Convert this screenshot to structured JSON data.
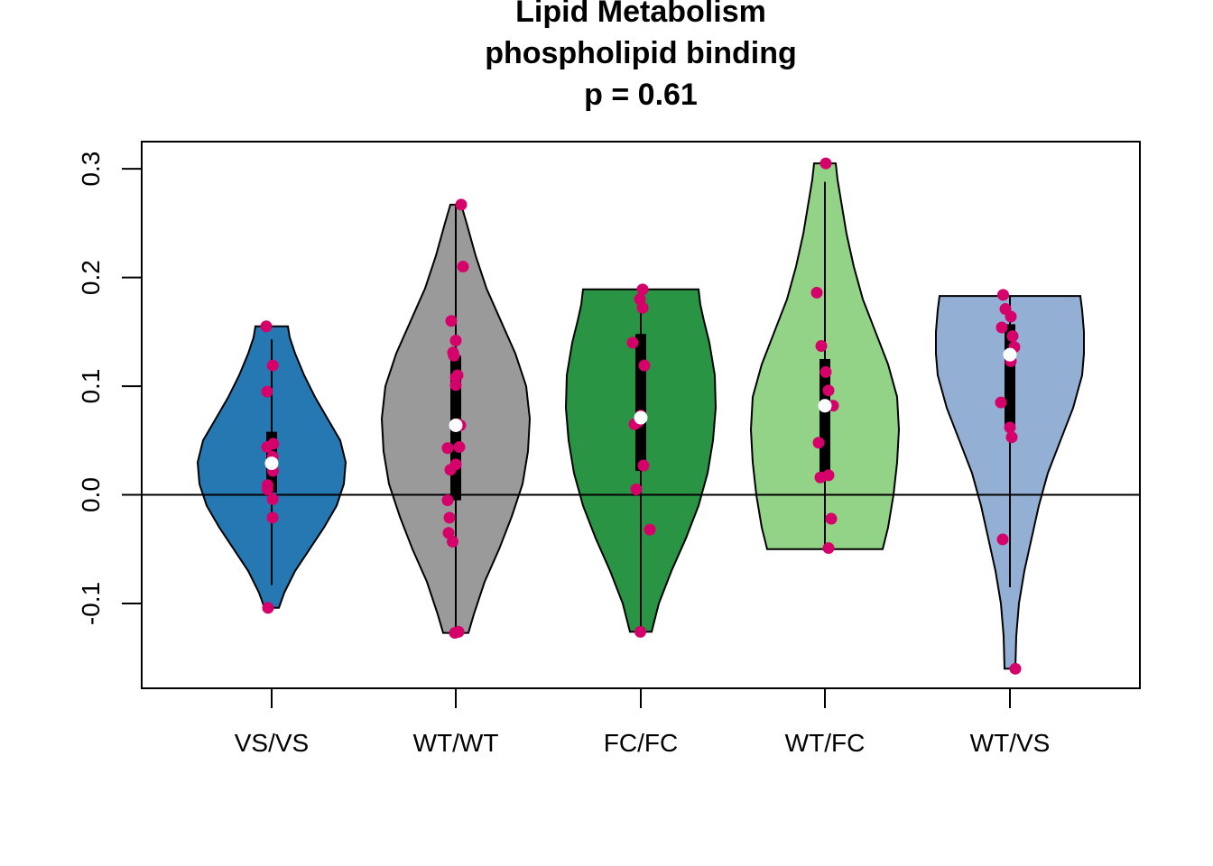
{
  "chart_data": {
    "type": "violin",
    "title_lines": [
      "Lipid Metabolism",
      "phospholipid binding",
      "p = 0.61"
    ],
    "xlabel": "",
    "ylabel": "",
    "ylim": [
      -0.178,
      0.325
    ],
    "yticks": [
      -0.1,
      0.0,
      0.1,
      0.2,
      0.3
    ],
    "ytick_labels": [
      "-0.1",
      "0.0",
      "0.1",
      "0.2",
      "0.3"
    ],
    "reference_line": 0.0,
    "grid": false,
    "point_color": "#D6006B",
    "median_color": "#FFFFFF",
    "groups": [
      {
        "label": "VS/VS",
        "color": "#2678B2",
        "range": [
          -0.104,
          0.155
        ],
        "whisker": [
          -0.083,
          0.143
        ],
        "q1": 0.002,
        "q3": 0.058,
        "median": 0.029,
        "density": [
          [
            -0.104,
            8
          ],
          [
            -0.09,
            14
          ],
          [
            -0.07,
            26
          ],
          [
            -0.05,
            42
          ],
          [
            -0.03,
            58
          ],
          [
            -0.01,
            72
          ],
          [
            0.01,
            80
          ],
          [
            0.03,
            82
          ],
          [
            0.05,
            76
          ],
          [
            0.07,
            62
          ],
          [
            0.09,
            48
          ],
          [
            0.11,
            36
          ],
          [
            0.13,
            26
          ],
          [
            0.145,
            20
          ],
          [
            0.155,
            18
          ]
        ],
        "points": [
          [
            -0.06,
            0.155
          ],
          [
            0.012,
            0.119
          ],
          [
            -0.05,
            0.095
          ],
          [
            -0.05,
            0.044
          ],
          [
            0.018,
            0.047
          ],
          [
            0.012,
            0.035
          ],
          [
            0.015,
            0.022
          ],
          [
            -0.045,
            0.009
          ],
          [
            -0.045,
            0.005
          ],
          [
            0.012,
            -0.004
          ],
          [
            0.01,
            -0.021
          ],
          [
            -0.04,
            -0.104
          ]
        ]
      },
      {
        "label": "WT/WT",
        "color": "#9A9A9A",
        "range": [
          -0.127,
          0.267
        ],
        "whisker": [
          -0.127,
          0.267
        ],
        "q1": -0.005,
        "q3": 0.128,
        "median": 0.064,
        "density": [
          [
            -0.127,
            14
          ],
          [
            -0.11,
            20
          ],
          [
            -0.08,
            32
          ],
          [
            -0.05,
            48
          ],
          [
            -0.02,
            62
          ],
          [
            0.01,
            74
          ],
          [
            0.04,
            80
          ],
          [
            0.07,
            82
          ],
          [
            0.1,
            78
          ],
          [
            0.13,
            66
          ],
          [
            0.16,
            50
          ],
          [
            0.19,
            34
          ],
          [
            0.22,
            22
          ],
          [
            0.25,
            12
          ],
          [
            0.267,
            6
          ]
        ],
        "points": [
          [
            0.06,
            0.267
          ],
          [
            0.08,
            0.21
          ],
          [
            -0.05,
            0.16
          ],
          [
            0.0,
            0.142
          ],
          [
            -0.03,
            0.131
          ],
          [
            -0.02,
            0.128
          ],
          [
            0.02,
            0.11
          ],
          [
            0.0,
            0.108
          ],
          [
            0.0,
            0.101
          ],
          [
            0.02,
            0.065
          ],
          [
            0.05,
            0.064
          ],
          [
            0.04,
            0.044
          ],
          [
            -0.09,
            0.043
          ],
          [
            0.0,
            0.028
          ],
          [
            -0.06,
            0.023
          ],
          [
            -0.09,
            -0.005
          ],
          [
            -0.07,
            -0.021
          ],
          [
            -0.08,
            -0.035
          ],
          [
            -0.035,
            -0.043
          ],
          [
            0.03,
            -0.126
          ],
          [
            -0.01,
            -0.127
          ]
        ]
      },
      {
        "label": "FC/FC",
        "color": "#2A9445",
        "range": [
          -0.126,
          0.189
        ],
        "whisker": [
          -0.126,
          0.189
        ],
        "q1": 0.022,
        "q3": 0.148,
        "median": 0.071,
        "density": [
          [
            -0.126,
            12
          ],
          [
            -0.1,
            20
          ],
          [
            -0.07,
            34
          ],
          [
            -0.04,
            50
          ],
          [
            -0.01,
            64
          ],
          [
            0.02,
            74
          ],
          [
            0.05,
            80
          ],
          [
            0.08,
            83
          ],
          [
            0.11,
            82
          ],
          [
            0.14,
            76
          ],
          [
            0.16,
            70
          ],
          [
            0.175,
            66
          ],
          [
            0.189,
            64
          ]
        ],
        "points": [
          [
            0.02,
            0.189
          ],
          [
            -0.01,
            0.18
          ],
          [
            0.02,
            0.172
          ],
          [
            -0.09,
            0.14
          ],
          [
            0.04,
            0.119
          ],
          [
            0.0,
            0.073
          ],
          [
            -0.03,
            0.067
          ],
          [
            -0.07,
            0.065
          ],
          [
            0.03,
            0.027
          ],
          [
            -0.05,
            0.005
          ],
          [
            0.1,
            -0.032
          ],
          [
            -0.005,
            -0.126
          ]
        ]
      },
      {
        "label": "WT/FC",
        "color": "#93D387",
        "range": [
          -0.05,
          0.305
        ],
        "whisker": [
          -0.05,
          0.288
        ],
        "q1": 0.02,
        "q3": 0.125,
        "median": 0.082,
        "density": [
          [
            -0.05,
            64
          ],
          [
            -0.03,
            70
          ],
          [
            0.0,
            76
          ],
          [
            0.03,
            80
          ],
          [
            0.06,
            82
          ],
          [
            0.09,
            80
          ],
          [
            0.12,
            70
          ],
          [
            0.15,
            56
          ],
          [
            0.18,
            42
          ],
          [
            0.21,
            32
          ],
          [
            0.24,
            24
          ],
          [
            0.27,
            18
          ],
          [
            0.29,
            14
          ],
          [
            0.305,
            12
          ]
        ],
        "points": [
          [
            0.01,
            0.305
          ],
          [
            -0.09,
            0.186
          ],
          [
            -0.04,
            0.137
          ],
          [
            0.01,
            0.113
          ],
          [
            0.04,
            0.096
          ],
          [
            0.09,
            0.082
          ],
          [
            -0.07,
            0.048
          ],
          [
            0.04,
            0.018
          ],
          [
            -0.05,
            0.016
          ],
          [
            0.07,
            -0.022
          ],
          [
            0.04,
            -0.049
          ]
        ]
      },
      {
        "label": "WT/VS",
        "color": "#94AFD4",
        "range": [
          -0.16,
          0.183
        ],
        "whisker": [
          -0.085,
          0.183
        ],
        "q1": 0.06,
        "q3": 0.157,
        "median": 0.129,
        "density": [
          [
            -0.16,
            6
          ],
          [
            -0.13,
            7
          ],
          [
            -0.1,
            10
          ],
          [
            -0.07,
            16
          ],
          [
            -0.04,
            24
          ],
          [
            -0.01,
            32
          ],
          [
            0.02,
            42
          ],
          [
            0.05,
            56
          ],
          [
            0.08,
            70
          ],
          [
            0.11,
            80
          ],
          [
            0.13,
            82
          ],
          [
            0.15,
            82
          ],
          [
            0.17,
            80
          ],
          [
            0.183,
            78
          ]
        ],
        "points": [
          [
            -0.075,
            0.184
          ],
          [
            -0.05,
            0.171
          ],
          [
            0.01,
            0.164
          ],
          [
            -0.09,
            0.154
          ],
          [
            0.03,
            0.146
          ],
          [
            0.05,
            0.136
          ],
          [
            0.01,
            0.123
          ],
          [
            -0.1,
            0.085
          ],
          [
            0.0,
            0.062
          ],
          [
            0.02,
            0.053
          ],
          [
            -0.08,
            -0.041
          ],
          [
            0.06,
            -0.16
          ]
        ]
      }
    ]
  }
}
